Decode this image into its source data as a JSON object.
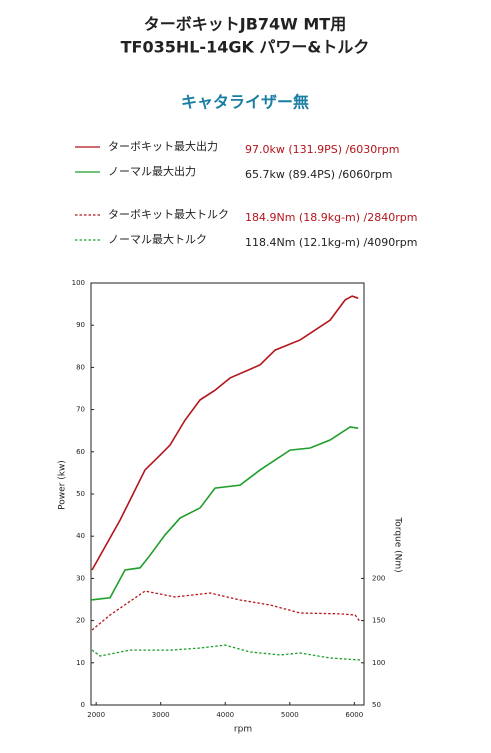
{
  "chart_data": {
    "type": "line",
    "title_lines": [
      "ターボキットJB74W MT用",
      "TF035HL-14GK パワー&トルク"
    ],
    "subtitle": "キャタライザー無",
    "xlabel": "rpm",
    "ylabel": "Power (kw)",
    "y2label": "Torque (Nm)",
    "xlim": [
      1920,
      6150
    ],
    "xticks": [
      2000,
      3000,
      4000,
      5000,
      6000
    ],
    "ylim": [
      0,
      100
    ],
    "yticks": [
      0,
      10,
      20,
      30,
      40,
      50,
      60,
      70,
      80,
      90,
      100
    ],
    "y2lim": [
      50,
      550
    ],
    "y2ticks": [
      50,
      100,
      150,
      200
    ],
    "series": [
      {
        "name": "ターボキット最大出力",
        "peak_label": "97.0kw (131.9PS) /6030rpm",
        "color": "#b3151b",
        "style": "solid",
        "axis": "y",
        "x": [
          1936,
          2370,
          2757,
          2990,
          3145,
          3377,
          3610,
          3842,
          4075,
          4540,
          4773,
          5160,
          5625,
          5858,
          5967,
          6060
        ],
        "values": [
          32.0,
          43.8,
          55.7,
          59.2,
          61.6,
          67.5,
          72.3,
          74.6,
          77.5,
          80.6,
          84.1,
          86.5,
          91.2,
          96.0,
          96.9,
          96.4
        ]
      },
      {
        "name": "ノーマル最大出力",
        "peak_label": "65.7kw (89.4PS) /6060rpm",
        "color": "#1e9e2a",
        "style": "solid",
        "axis": "y",
        "x": [
          1920,
          2215,
          2447,
          2680,
          2835,
          3067,
          3300,
          3610,
          3842,
          4230,
          4540,
          5005,
          5315,
          5625,
          5935,
          6060
        ],
        "values": [
          24.9,
          25.4,
          32.0,
          32.5,
          35.5,
          40.3,
          44.3,
          46.7,
          51.4,
          52.1,
          55.7,
          60.4,
          60.9,
          62.8,
          65.9,
          65.6
        ]
      },
      {
        "name": "ターボキット最大トルク",
        "peak_label": "184.9Nm (18.9kg-m) /2840rpm",
        "color": "#b3151b",
        "style": "dotted",
        "axis": "y2",
        "x": [
          1936,
          2215,
          2757,
          3222,
          3765,
          4230,
          4695,
          5160,
          5780,
          6013,
          6091
        ],
        "values": [
          138.9,
          156.6,
          185.0,
          178.0,
          182.7,
          174.4,
          168.5,
          159.0,
          158.0,
          156.6,
          148.4
        ]
      },
      {
        "name": "ノーマル最大トルク",
        "peak_label": "118.4Nm (12.1kg-m) /4090rpm",
        "color": "#1e9e2a",
        "style": "dotted",
        "axis": "y2",
        "x": [
          1936,
          2060,
          2525,
          3145,
          3610,
          3998,
          4385,
          4850,
          5160,
          5625,
          6091
        ],
        "values": [
          115.2,
          108.0,
          115.0,
          115.0,
          117.5,
          121.0,
          112.8,
          109.3,
          111.6,
          105.7,
          103.3
        ]
      }
    ]
  }
}
